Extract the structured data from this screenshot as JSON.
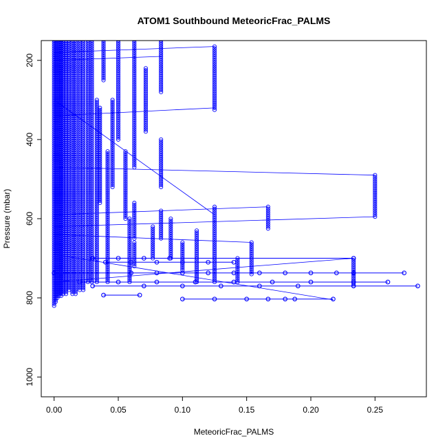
{
  "chart_data": {
    "type": "scatter",
    "title": "ATOM1 Southbound MeteoricFrac_PALMS",
    "xlabel": "MeteoricFrac_PALMS",
    "ylabel": "Pressure (mbar)",
    "xlim": [
      -0.01,
      0.29
    ],
    "ylim": [
      1050,
      150
    ],
    "y_reversed": true,
    "x_ticks": [
      0.0,
      0.05,
      0.1,
      0.15,
      0.2,
      0.25
    ],
    "x_tick_labels": [
      "0.00",
      "0.05",
      "0.10",
      "0.15",
      "0.20",
      "0.25"
    ],
    "y_ticks": [
      200,
      400,
      600,
      800,
      1000
    ],
    "y_tick_labels": [
      "200",
      "400",
      "600",
      "800",
      "1000"
    ],
    "grid": false,
    "marker": "open-circle",
    "line": true,
    "color": "#0000ff",
    "columns": [
      {
        "x": 0.0625,
        "p_top": 150,
        "p_bottom": 470
      },
      {
        "x": 0.125,
        "p_top": 165,
        "p_bottom": 325
      },
      {
        "x": 0.25,
        "p_top": 490,
        "p_bottom": 595
      },
      {
        "x": 0.2333,
        "p_top": 700,
        "p_bottom": 770
      },
      {
        "x": 0.1667,
        "p_top": 570,
        "p_bottom": 625
      },
      {
        "x": 0.0833,
        "p_top": 150,
        "p_bottom": 280
      },
      {
        "x": 0.0833,
        "p_top": 400,
        "p_bottom": 520
      },
      {
        "x": 0.0833,
        "p_top": 580,
        "p_bottom": 650
      },
      {
        "x": 0.125,
        "p_top": 570,
        "p_bottom": 760
      },
      {
        "x": 0.1111,
        "p_top": 630,
        "p_bottom": 760
      },
      {
        "x": 0.0909,
        "p_top": 600,
        "p_bottom": 700
      },
      {
        "x": 0.0556,
        "p_top": 430,
        "p_bottom": 600
      },
      {
        "x": 0.0455,
        "p_top": 300,
        "p_bottom": 520
      },
      {
        "x": 0.0385,
        "p_top": 150,
        "p_bottom": 250
      },
      {
        "x": 0.0357,
        "p_top": 320,
        "p_bottom": 560
      },
      {
        "x": 0.05,
        "p_top": 150,
        "p_bottom": 400
      },
      {
        "x": 0.0625,
        "p_top": 560,
        "p_bottom": 650
      },
      {
        "x": 0.0714,
        "p_top": 220,
        "p_bottom": 380
      },
      {
        "x": 0.0625,
        "p_top": 660,
        "p_bottom": 720
      },
      {
        "x": 0.1,
        "p_top": 660,
        "p_bottom": 730
      },
      {
        "x": 0.1538,
        "p_top": 660,
        "p_bottom": 740
      },
      {
        "x": 0.1429,
        "p_top": 700,
        "p_bottom": 760
      },
      {
        "x": 0.0769,
        "p_top": 620,
        "p_bottom": 700
      },
      {
        "x": 0.0294,
        "p_top": 150,
        "p_bottom": 760
      },
      {
        "x": 0.0263,
        "p_top": 150,
        "p_bottom": 760
      },
      {
        "x": 0.0227,
        "p_top": 150,
        "p_bottom": 780
      },
      {
        "x": 0.02,
        "p_top": 150,
        "p_bottom": 780
      },
      {
        "x": 0.0167,
        "p_top": 150,
        "p_bottom": 790
      },
      {
        "x": 0.0143,
        "p_top": 150,
        "p_bottom": 790
      },
      {
        "x": 0.0116,
        "p_top": 150,
        "p_bottom": 780
      },
      {
        "x": 0.0093,
        "p_top": 150,
        "p_bottom": 790
      },
      {
        "x": 0.0071,
        "p_top": 150,
        "p_bottom": 790
      },
      {
        "x": 0.0054,
        "p_top": 150,
        "p_bottom": 795
      },
      {
        "x": 0.0038,
        "p_top": 150,
        "p_bottom": 795
      },
      {
        "x": 0.0025,
        "p_top": 150,
        "p_bottom": 800
      },
      {
        "x": 0.0012,
        "p_top": 150,
        "p_bottom": 810
      },
      {
        "x": 0.0,
        "p_top": 150,
        "p_bottom": 820
      },
      {
        "x": 0.0333,
        "p_top": 300,
        "p_bottom": 760
      },
      {
        "x": 0.0417,
        "p_top": 430,
        "p_bottom": 760
      },
      {
        "x": 0.0588,
        "p_top": 600,
        "p_bottom": 760
      }
    ],
    "horizontal_rows": [
      {
        "p": 737,
        "x": [
          0.0,
          0.06,
          0.08,
          0.1,
          0.12,
          0.14,
          0.16,
          0.18,
          0.2,
          0.22,
          0.2333,
          0.2727
        ]
      },
      {
        "p": 760,
        "x": [
          0.02,
          0.05,
          0.08,
          0.11,
          0.14,
          0.17,
          0.2,
          0.2333,
          0.26
        ]
      },
      {
        "p": 770,
        "x": [
          0.03,
          0.07,
          0.1,
          0.13,
          0.16,
          0.19,
          0.2333,
          0.2833
        ]
      },
      {
        "p": 803,
        "x": [
          0.1,
          0.125,
          0.15,
          0.1667,
          0.18,
          0.1875,
          0.2174
        ]
      },
      {
        "p": 793,
        "x": [
          0.0385,
          0.0667
        ]
      },
      {
        "p": 710,
        "x": [
          0.04,
          0.06,
          0.08,
          0.1,
          0.12,
          0.14
        ]
      },
      {
        "p": 700,
        "x": [
          0.03,
          0.05,
          0.07,
          0.09,
          0.2333
        ]
      }
    ],
    "connector_lines": [
      {
        "x": [
          0.0,
          0.125
        ],
        "p": [
          180,
          165
        ]
      },
      {
        "x": [
          0.0,
          0.25
        ],
        "p": [
          470,
          490
        ]
      },
      {
        "x": [
          0.0,
          0.25
        ],
        "p": [
          620,
          595
        ]
      },
      {
        "x": [
          0.0,
          0.1667
        ],
        "p": [
          590,
          570
        ]
      },
      {
        "x": [
          0.0,
          0.125
        ],
        "p": [
          340,
          320
        ]
      },
      {
        "x": [
          0.0,
          0.0833
        ],
        "p": [
          200,
          190
        ]
      },
      {
        "x": [
          0.0,
          0.2174
        ],
        "p": [
          690,
          805
        ]
      },
      {
        "x": [
          0.0,
          0.2333
        ],
        "p": [
          760,
          700
        ]
      },
      {
        "x": [
          0.0,
          0.125
        ],
        "p": [
          300,
          590
        ]
      },
      {
        "x": [
          0.0,
          0.1538
        ],
        "p": [
          640,
          660
        ]
      }
    ]
  }
}
